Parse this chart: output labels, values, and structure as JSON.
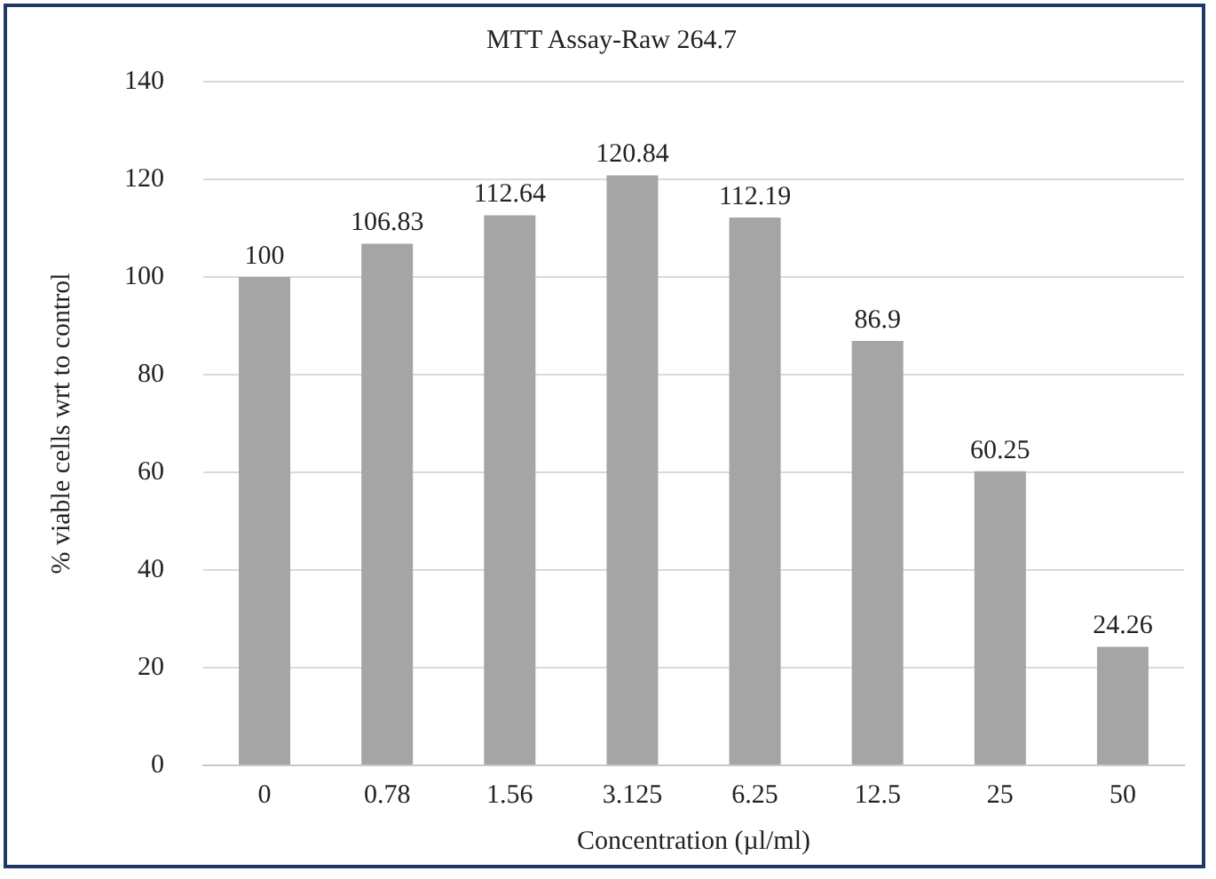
{
  "chart_data": {
    "type": "bar",
    "title": "MTT Assay-Raw 264.7",
    "xlabel": "Concentration (µl/ml)",
    "ylabel": "% viable cells wrt to control",
    "categories": [
      "0",
      "0.78",
      "1.56",
      "3.125",
      "6.25",
      "12.5",
      "25",
      "50"
    ],
    "values": [
      100,
      106.83,
      112.64,
      120.84,
      112.19,
      86.9,
      60.25,
      24.26
    ],
    "color": "#a5a5a5",
    "ylim": [
      0,
      140
    ],
    "yticks": [
      0,
      20,
      40,
      60,
      80,
      100,
      120,
      140
    ],
    "grid": "y",
    "data_labels": true,
    "legend": false
  }
}
